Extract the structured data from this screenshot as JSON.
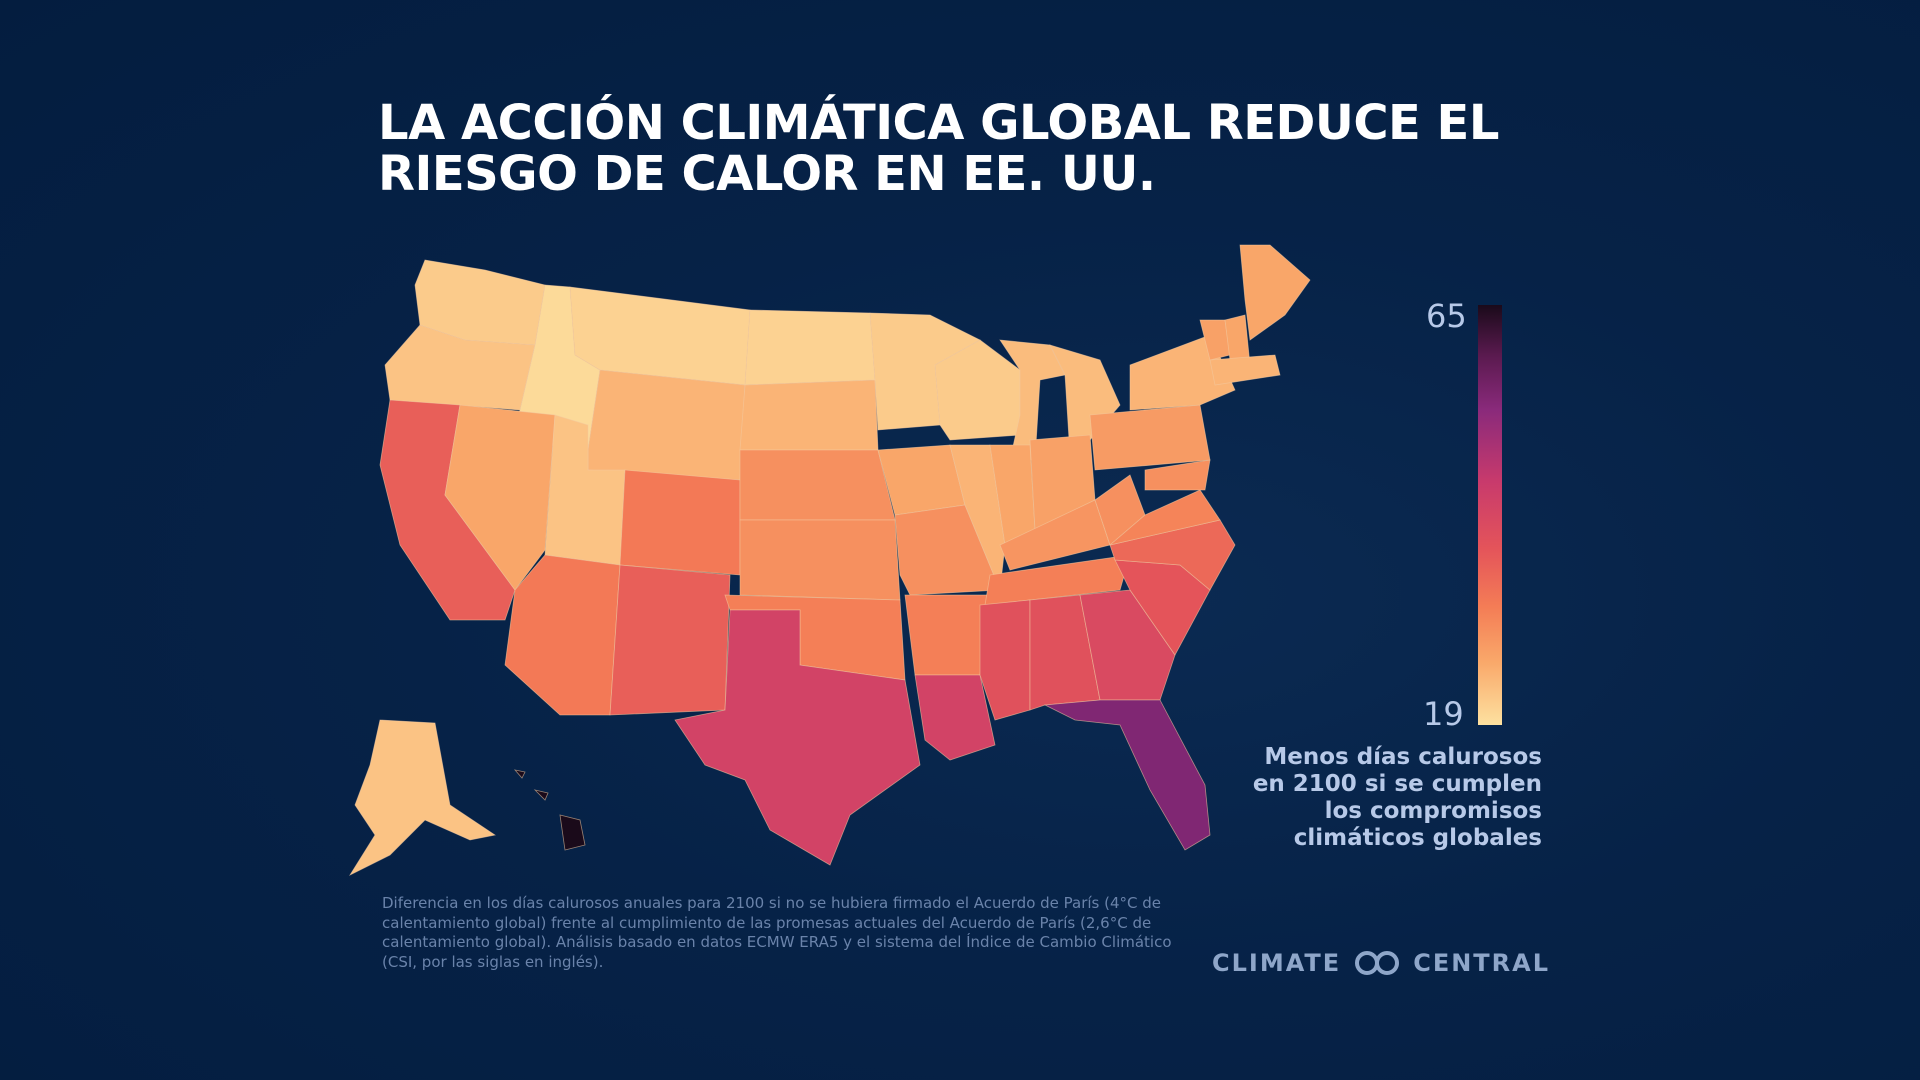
{
  "title": {
    "line1": "LA ACCIÓN CLIMÁTICA GLOBAL REDUCE EL",
    "line2": "RIESGO DE CALOR EN EE. UU."
  },
  "legend": {
    "max_label": "65",
    "min_label": "19",
    "caption_lines": [
      "Menos días calurosos",
      "en 2100 si se cumplen",
      "los compromisos",
      "climáticos globales"
    ]
  },
  "footnote": {
    "lines": [
      "Diferencia en los días calurosos anuales para 2100 si no se hubiera firmado el Acuerdo de París (4°C de",
      "calentamiento global) frente al cumplimiento de las promesas actuales del Acuerdo de París (2,6°C de",
      "calentamiento global). Análisis basado en datos ECMW ERA5 y el sistema del Índice de Cambio Climático",
      "(CSI, por las siglas en inglés)."
    ]
  },
  "brand": {
    "left": "CLIMATE",
    "right": "CENTRAL",
    "icon": "climate-central-logo-icon"
  },
  "colors": {
    "background": "#062247",
    "scale": [
      "#fde1a0",
      "#f9a86a",
      "#f47d56",
      "#e4545a",
      "#c83a6c",
      "#8a2a7b",
      "#1a0a1a"
    ]
  },
  "map_data": {
    "type": "choropleth",
    "region": "United States",
    "value_range": [
      19,
      65
    ],
    "states": [
      {
        "state": "WA",
        "value": 22
      },
      {
        "state": "OR",
        "value": 23
      },
      {
        "state": "ID",
        "value": 20
      },
      {
        "state": "MT",
        "value": 21
      },
      {
        "state": "WY",
        "value": 25
      },
      {
        "state": "ND",
        "value": 21
      },
      {
        "state": "SD",
        "value": 25
      },
      {
        "state": "MN",
        "value": 22
      },
      {
        "state": "WI",
        "value": 22
      },
      {
        "state": "MI",
        "value": 24
      },
      {
        "state": "CA",
        "value": 40
      },
      {
        "state": "NV",
        "value": 27
      },
      {
        "state": "UT",
        "value": 23
      },
      {
        "state": "CO",
        "value": 35
      },
      {
        "state": "NE",
        "value": 31
      },
      {
        "state": "IA",
        "value": 27
      },
      {
        "state": "IL",
        "value": 25
      },
      {
        "state": "IN",
        "value": 27
      },
      {
        "state": "OH",
        "value": 28
      },
      {
        "state": "PA",
        "value": 29
      },
      {
        "state": "NY",
        "value": 25
      },
      {
        "state": "ME",
        "value": 27
      },
      {
        "state": "VT",
        "value": 28
      },
      {
        "state": "NH",
        "value": 27
      },
      {
        "state": "MA",
        "value": 25
      },
      {
        "state": "AZ",
        "value": 35
      },
      {
        "state": "NM",
        "value": 40
      },
      {
        "state": "KS",
        "value": 31
      },
      {
        "state": "MO",
        "value": 31
      },
      {
        "state": "KY",
        "value": 30
      },
      {
        "state": "WV",
        "value": 31
      },
      {
        "state": "VA",
        "value": 33
      },
      {
        "state": "MD",
        "value": 31
      },
      {
        "state": "TX",
        "value": 47
      },
      {
        "state": "OK",
        "value": 34
      },
      {
        "state": "AR",
        "value": 34
      },
      {
        "state": "TN",
        "value": 34
      },
      {
        "state": "NC",
        "value": 38
      },
      {
        "state": "SC",
        "value": 42
      },
      {
        "state": "GA",
        "value": 45
      },
      {
        "state": "AL",
        "value": 43
      },
      {
        "state": "MS",
        "value": 43
      },
      {
        "state": "LA",
        "value": 47
      },
      {
        "state": "FL",
        "value": 58
      },
      {
        "state": "AK",
        "value": 23
      },
      {
        "state": "HI",
        "value": 65
      }
    ]
  }
}
